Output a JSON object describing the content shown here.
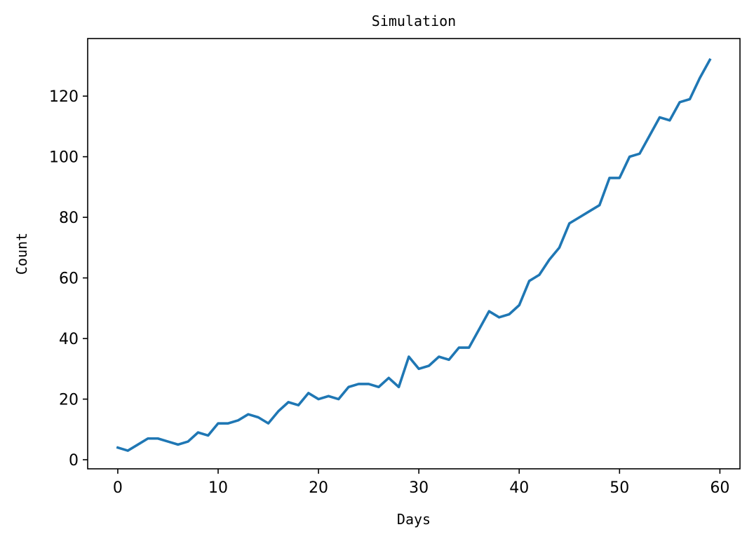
{
  "chart_data": {
    "type": "line",
    "title": "Simulation",
    "xlabel": "Days",
    "ylabel": "Count",
    "xlim": [
      -3,
      62
    ],
    "ylim": [
      -3,
      139
    ],
    "xticks": [
      0,
      10,
      20,
      30,
      40,
      50,
      60
    ],
    "yticks": [
      0,
      20,
      40,
      60,
      80,
      100,
      120
    ],
    "grid": false,
    "legend": "none",
    "series": [
      {
        "color": "#1f77b4",
        "x": [
          0,
          1,
          2,
          3,
          4,
          5,
          6,
          7,
          8,
          9,
          10,
          11,
          12,
          13,
          14,
          15,
          16,
          17,
          18,
          19,
          20,
          21,
          22,
          23,
          24,
          25,
          26,
          27,
          28,
          29,
          30,
          31,
          32,
          33,
          34,
          35,
          36,
          37,
          38,
          39,
          40,
          41,
          42,
          43,
          44,
          45,
          46,
          47,
          48,
          49,
          50,
          51,
          52,
          53,
          54,
          55,
          56,
          57,
          58,
          59
        ],
        "y": [
          4,
          3,
          5,
          7,
          7,
          6,
          5,
          6,
          9,
          8,
          12,
          12,
          13,
          15,
          14,
          12,
          16,
          19,
          18,
          22,
          20,
          21,
          20,
          24,
          25,
          25,
          24,
          27,
          24,
          34,
          30,
          31,
          34,
          33,
          37,
          37,
          43,
          49,
          47,
          48,
          51,
          59,
          61,
          66,
          70,
          78,
          80,
          82,
          84,
          93,
          93,
          100,
          101,
          107,
          113,
          112,
          118,
          119,
          126,
          132
        ]
      }
    ]
  }
}
